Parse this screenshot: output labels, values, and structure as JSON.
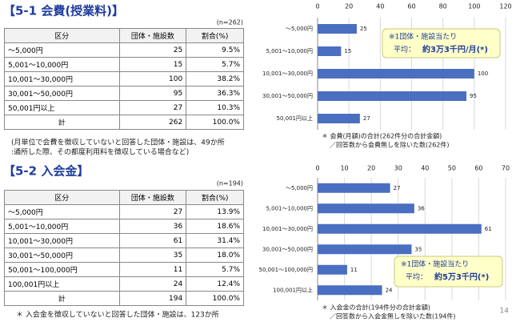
{
  "section1": {
    "title": "【5-1 会費(授業料)】",
    "n_label": "(n=262)",
    "table": {
      "header": [
        "区分",
        "団体・施設数",
        "割合(%)"
      ],
      "rows": [
        [
          "～5,000円",
          "25",
          "9.5%"
        ],
        [
          "5,001～10,000円",
          "15",
          "5.7%"
        ],
        [
          "10,001～30,000円",
          "100",
          "38.2%"
        ],
        [
          "30,001～50,000円",
          "95",
          "36.3%"
        ],
        [
          "50,001円以上",
          "27",
          "10.3%"
        ],
        [
          "計",
          "262",
          "100.0%"
        ]
      ]
    },
    "note": [
      "(月単位で会費を徴収していないと回答した団体・施設は、49か所",
      ":通所した際、その都度利用料を徴収している場合など)"
    ]
  },
  "section2": {
    "title": "【5-2 入会金】",
    "n_label": "(n=194)",
    "table": {
      "header": [
        "区分",
        "団体・施設数",
        "割合(%)"
      ],
      "rows": [
        [
          "～5,000円",
          "27",
          "13.9%"
        ],
        [
          "5,001～10,000円",
          "36",
          "18.6%"
        ],
        [
          "10,001～30,000円",
          "61",
          "31.4%"
        ],
        [
          "30,001～50,000円",
          "35",
          "18.0%"
        ],
        [
          "50,001～100,000円",
          "11",
          "5.7%"
        ],
        [
          "100,001円以上",
          "24",
          "12.4%"
        ],
        [
          "計",
          "194",
          "100.0%"
        ]
      ]
    },
    "note": "＊ 入会金を徴収していないと回答した団体・施設は、123か所"
  },
  "chart_data": [
    {
      "type": "bar",
      "horizontal": true,
      "color": "#4a6fc0",
      "grid": true,
      "categories": [
        "～5,000円",
        "5,001～10,000円",
        "10,001～30,000円",
        "30,001～50,000円",
        "50,001円以上"
      ],
      "values": [
        25,
        15,
        100,
        95,
        27
      ],
      "xlim": [
        0,
        120
      ],
      "xticks": [
        0,
        20,
        40,
        60,
        80,
        100,
        120
      ],
      "annotation": [
        "※1団体・施設当たり",
        "平均：",
        "約3万3千円/月(*)"
      ],
      "footnotes": [
        "＊ 会費(月額)の合計(262件分の合計金額)",
        "／回答数から会費無しを除いた数(262件)"
      ]
    },
    {
      "type": "bar",
      "horizontal": true,
      "color": "#4a6fc0",
      "grid": true,
      "categories": [
        "～5,000円",
        "5,001～10,000円",
        "10,001～30,000円",
        "30,001～50,000円",
        "50,001～100,000円",
        "100,001円以上"
      ],
      "values": [
        27,
        36,
        61,
        35,
        11,
        24
      ],
      "xlim": [
        0,
        70
      ],
      "xticks": [
        0,
        10,
        20,
        30,
        40,
        50,
        60,
        70
      ],
      "annotation": [
        "※1団体・施設当たり",
        "平均：",
        "約5万3千円(*)"
      ],
      "footnotes": [
        "＊ 入会金の合計(194件分の合計金額)",
        "／回答数から入会金無しを除いた数(194件)"
      ]
    }
  ],
  "page_number": "14"
}
